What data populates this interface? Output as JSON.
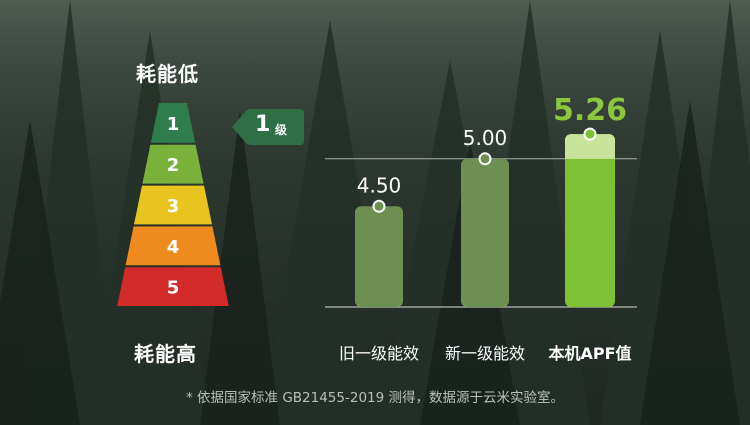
{
  "energy_scale": {
    "top_label": "耗能低",
    "bottom_label": "耗能高",
    "levels": [
      {
        "label": "1",
        "color": "#2f7d4c"
      },
      {
        "label": "2",
        "color": "#79b13a"
      },
      {
        "label": "3",
        "color": "#e7c41e"
      },
      {
        "label": "4",
        "color": "#ee8a1e"
      },
      {
        "label": "5",
        "color": "#d32a2a"
      }
    ],
    "badge_number": "1",
    "badge_unit": "级"
  },
  "chart_data": {
    "type": "bar",
    "categories": [
      "旧一级能效",
      "新一级能效",
      "本机APF值"
    ],
    "values": [
      4.5,
      5.0,
      5.26
    ],
    "value_labels": [
      "4.50",
      "5.00",
      "5.26"
    ],
    "highlight_index": 2,
    "reference_line": 5.0,
    "colors": {
      "bar": "#6e8f52",
      "highlight": "#7ec137",
      "highlight_top": "#c8e49a",
      "highlight_label": "#8cc63f",
      "label": "#ffffff"
    }
  },
  "footnote": "* 依据国家标准 GB21455-2019 测得，数据源于云米实验室。"
}
